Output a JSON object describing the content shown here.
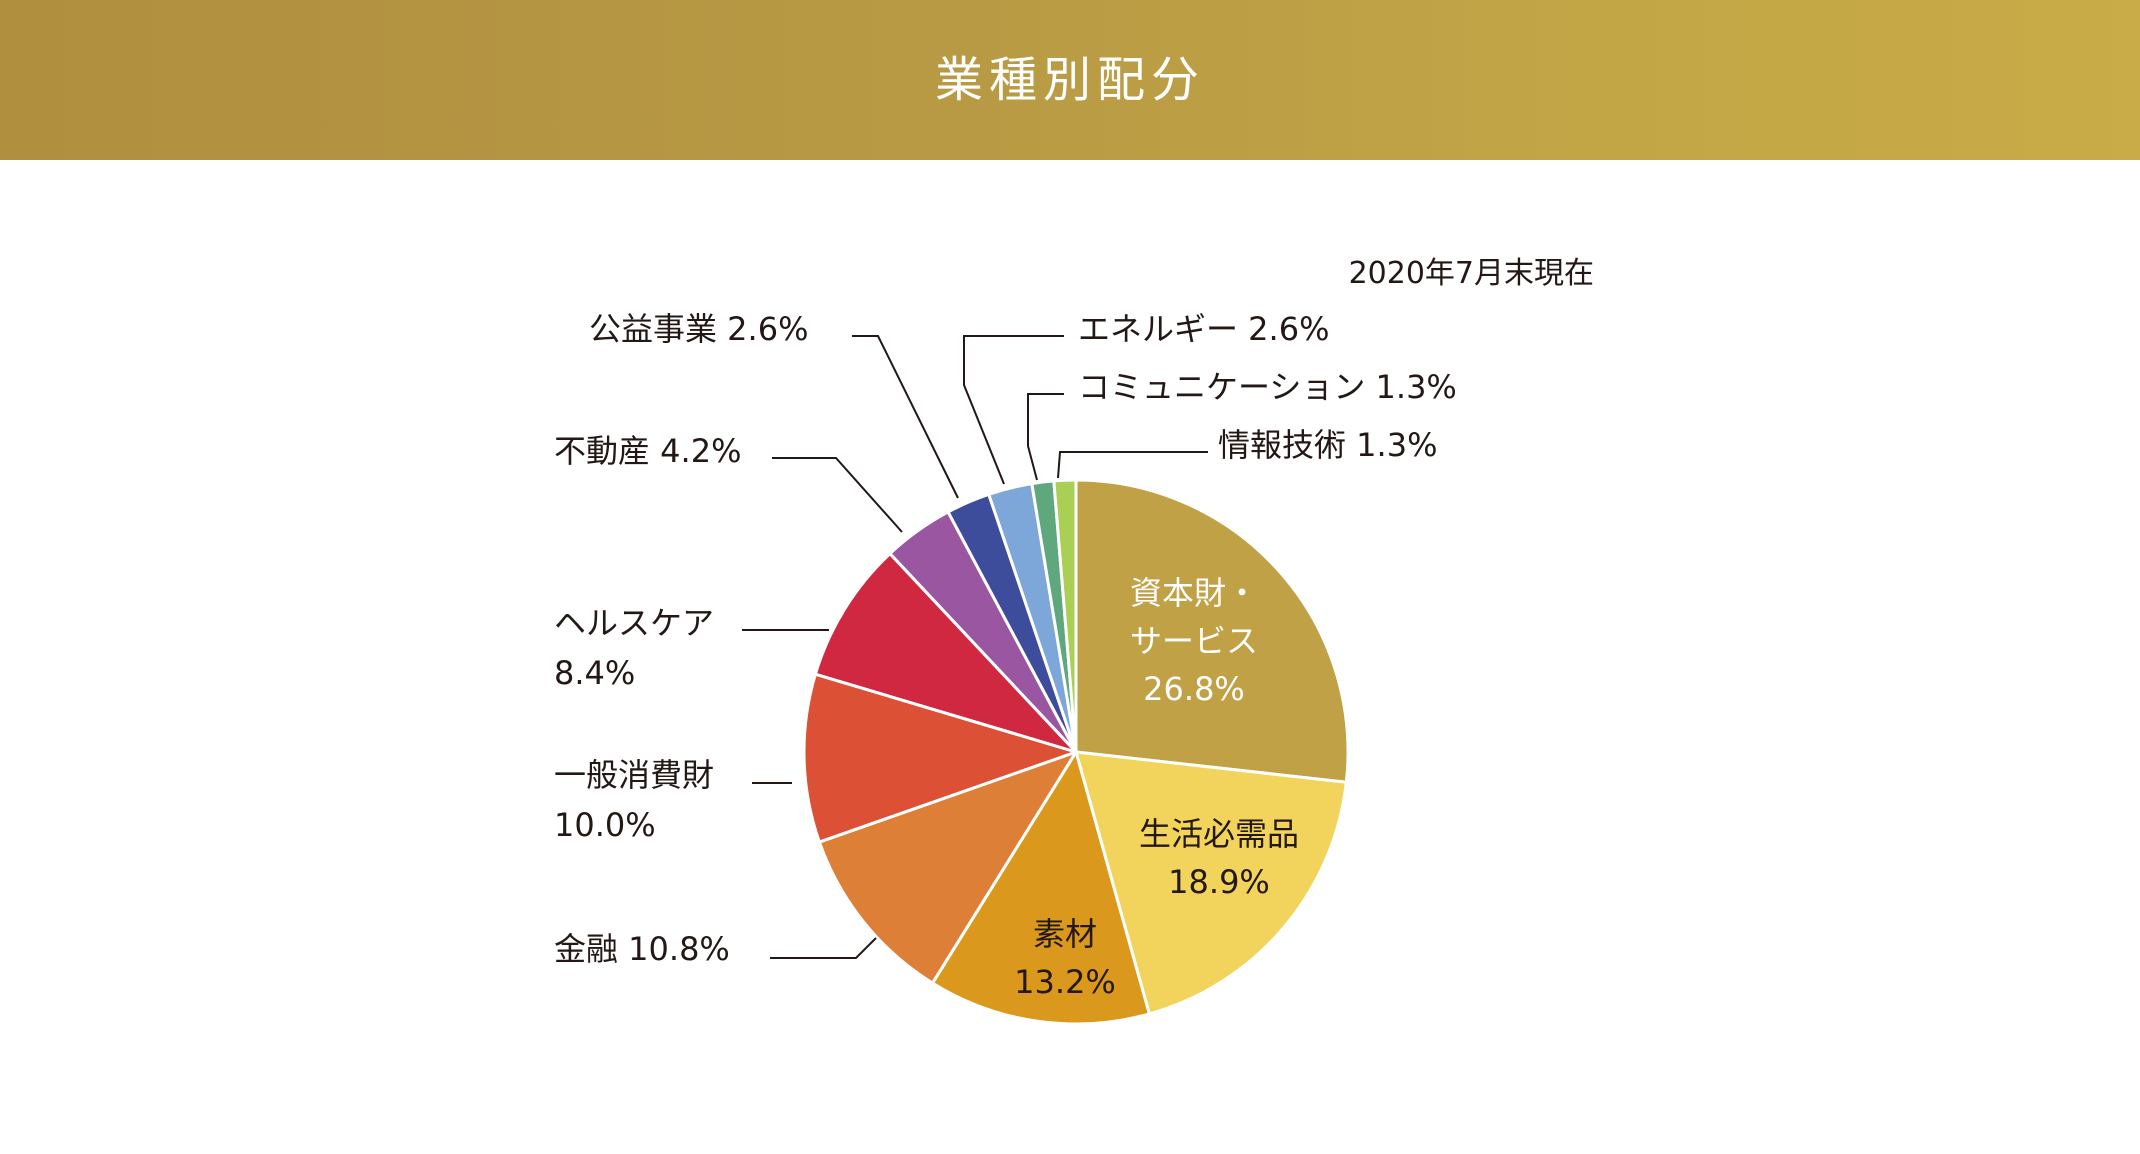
{
  "header": {
    "title": "業種別配分"
  },
  "chart_data": {
    "type": "pie",
    "title": "業種別配分",
    "as_of": "2020年7月末現在",
    "unit": "%",
    "start_angle_deg": 0,
    "direction": "clockwise",
    "slices": [
      {
        "label": "資本財・サービス",
        "label_lines": [
          "資本財・",
          "サービス"
        ],
        "value": 26.8,
        "display": "26.8%",
        "color": "#c1a146",
        "label_inside": true,
        "text_color": "#ffffff"
      },
      {
        "label": "生活必需品",
        "label_lines": [
          "生活必需品"
        ],
        "value": 18.9,
        "display": "18.9%",
        "color": "#f2d45c",
        "label_inside": true,
        "text_color": "#231815"
      },
      {
        "label": "素材",
        "label_lines": [
          "素材"
        ],
        "value": 13.2,
        "display": "13.2%",
        "color": "#da981c",
        "label_inside": true,
        "text_color": "#231815"
      },
      {
        "label": "金融",
        "label_lines": [
          "金融"
        ],
        "value": 10.8,
        "display": "10.8%",
        "color": "#dd7f37",
        "label_inside": false,
        "text_color": "#231815"
      },
      {
        "label": "一般消費財",
        "label_lines": [
          "一般消費財"
        ],
        "value": 10.0,
        "display": "10.0%",
        "color": "#dc5035",
        "label_inside": false,
        "text_color": "#231815"
      },
      {
        "label": "ヘルスケア",
        "label_lines": [
          "ヘルスケア"
        ],
        "value": 8.4,
        "display": "8.4%",
        "color": "#d02841",
        "label_inside": false,
        "text_color": "#231815"
      },
      {
        "label": "不動産",
        "label_lines": [
          "不動産"
        ],
        "value": 4.2,
        "display": "4.2%",
        "color": "#9a56a0",
        "label_inside": false,
        "text_color": "#231815"
      },
      {
        "label": "公益事業",
        "label_lines": [
          "公益事業"
        ],
        "value": 2.6,
        "display": "2.6%",
        "color": "#3e4d9b",
        "label_inside": false,
        "text_color": "#231815"
      },
      {
        "label": "エネルギー",
        "label_lines": [
          "エネルギー"
        ],
        "value": 2.6,
        "display": "2.6%",
        "color": "#7da6d9",
        "label_inside": false,
        "text_color": "#231815"
      },
      {
        "label": "コミュニケーション",
        "label_lines": [
          "コミュニケーション"
        ],
        "value": 1.3,
        "display": "1.3%",
        "color": "#5fa77d",
        "label_inside": false,
        "text_color": "#231815"
      },
      {
        "label": "情報技術",
        "label_lines": [
          "情報技術"
        ],
        "value": 1.3,
        "display": "1.3%",
        "color": "#a9cf55",
        "label_inside": false,
        "text_color": "#231815"
      }
    ]
  }
}
